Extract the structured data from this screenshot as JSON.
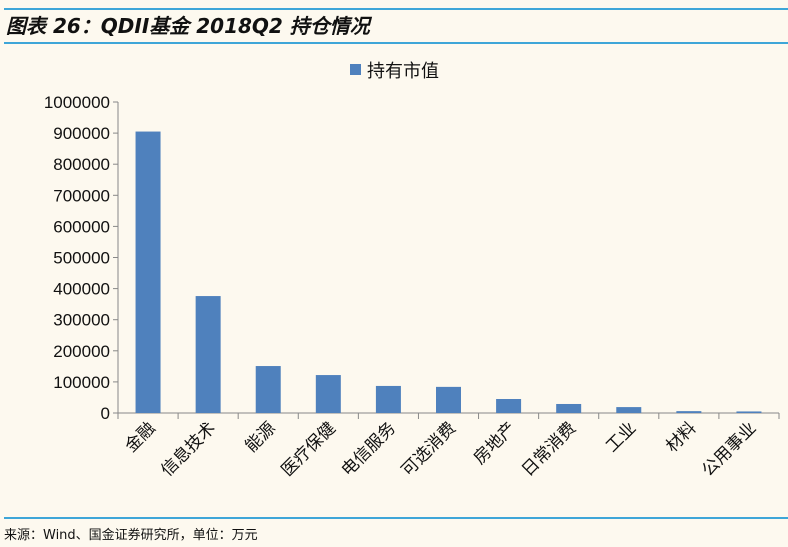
{
  "title": "图表 26：QDII基金 2018Q2 持仓情况",
  "source": "来源：Wind、国金证券研究所，单位：万元",
  "chart_data": {
    "type": "bar",
    "title": "",
    "legend": {
      "label": "持有市值",
      "position": "top-center"
    },
    "color": "#4f81bd",
    "categories": [
      "金融",
      "信息技术",
      "能源",
      "医疗保健",
      "电信服务",
      "可选消费",
      "房地产",
      "日常消费",
      "工业",
      "材料",
      "公用事业"
    ],
    "values": [
      905000,
      376000,
      151000,
      122000,
      87000,
      84000,
      45000,
      29000,
      19000,
      6000,
      5000
    ],
    "ylim": [
      0,
      1000000
    ],
    "yticks": [
      0,
      100000,
      200000,
      300000,
      400000,
      500000,
      600000,
      700000,
      800000,
      900000,
      1000000
    ],
    "xlabel": "",
    "ylabel": "",
    "grid": false
  }
}
